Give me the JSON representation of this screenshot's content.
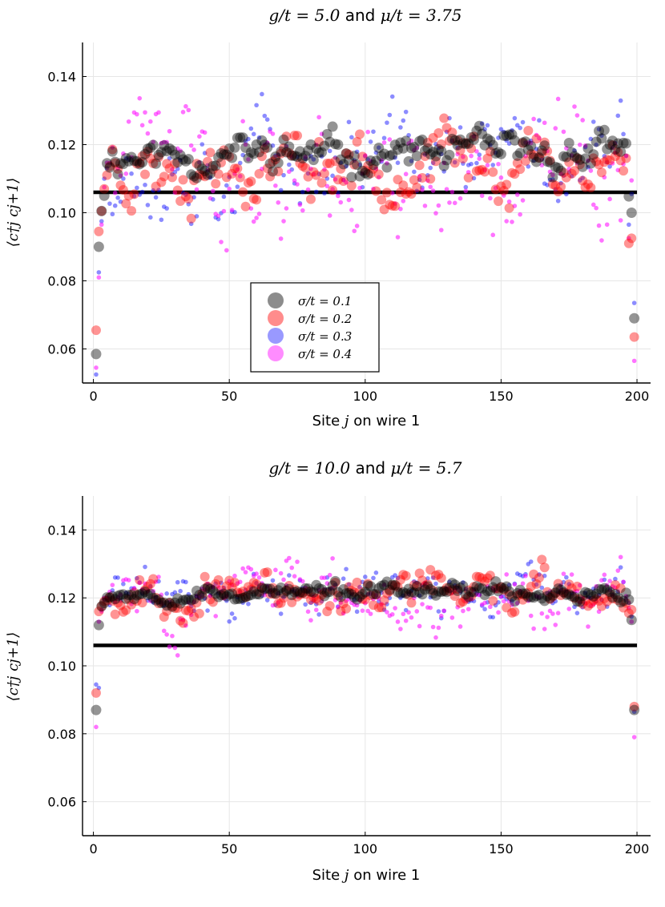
{
  "figure": {
    "layout": "two vertically stacked scatter plots sharing axes design"
  },
  "colors": {
    "s1": "#000000",
    "s2": "#ff0000",
    "s3": "#0000ff",
    "s4": "#ff00ff",
    "reference": "#000000",
    "grid": "#e6e6e6"
  },
  "chart_data": [
    {
      "type": "scatter",
      "title": {
        "g_part": "g/t = 5.0",
        "mid": "and",
        "mu_part": "μ/t = 3.75"
      },
      "xlabel": {
        "pre": "Site",
        "var": "j",
        "post": "on wire 1"
      },
      "ylabel": "⟨c†j cj+1⟩",
      "xlim": [
        -4,
        205
      ],
      "ylim": [
        0.05,
        0.15
      ],
      "xticks": [
        "0",
        "50",
        "100",
        "150",
        "200"
      ],
      "yticks": [
        "0.06",
        "0.08",
        "0.10",
        "0.12",
        "0.14"
      ],
      "reference_line": {
        "value": 0.106,
        "from": 0,
        "to": 200
      },
      "legend": {
        "position": "bottom-center",
        "entries": [
          "σ/t = 0.1",
          "σ/t = 0.2",
          "σ/t = 0.3",
          "σ/t = 0.4"
        ]
      },
      "series": [
        {
          "name": "σ/t = 0.1",
          "sigma": 0.1,
          "x_start": 1,
          "x_end": 199,
          "bulk_mean": 0.117,
          "spread": 0.004,
          "edge_left": [
            0.0585,
            0.09,
            0.1005,
            0.105
          ],
          "edge_right": [
            0.1048,
            0.1,
            0.069
          ],
          "seed": 11
        },
        {
          "name": "σ/t = 0.2",
          "sigma": 0.2,
          "x_start": 1,
          "x_end": 199,
          "bulk_mean": 0.115,
          "spread": 0.0075,
          "edge_left": [
            0.0655,
            0.0945,
            0.1005,
            0.107
          ],
          "edge_right": [
            0.091,
            0.0925,
            0.0635
          ],
          "seed": 23
        },
        {
          "name": "σ/t = 0.3",
          "sigma": 0.3,
          "x_start": 1,
          "x_end": 199,
          "bulk_mean": 0.116,
          "spread": 0.0105,
          "edge_left": [
            0.0525,
            0.0825,
            0.0975,
            0.11
          ],
          "edge_right": [
            0.0965,
            0.1055,
            0.0735
          ],
          "seed": 37
        },
        {
          "name": "σ/t = 0.4",
          "sigma": 0.4,
          "x_start": 1,
          "x_end": 199,
          "bulk_mean": 0.114,
          "spread": 0.0135,
          "edge_left": [
            0.0545,
            0.081,
            0.0965,
            0.1075
          ],
          "edge_right": [
            0.0925,
            0.1095,
            0.0565
          ],
          "seed": 41
        }
      ]
    },
    {
      "type": "scatter",
      "title": {
        "g_part": "g/t = 10.0",
        "mid": "and",
        "mu_part": "μ/t = 5.7"
      },
      "xlabel": {
        "pre": "Site",
        "var": "j",
        "post": "on wire 1"
      },
      "ylabel": "⟨c†j cj+1⟩",
      "xlim": [
        -4,
        205
      ],
      "ylim": [
        0.05,
        0.15
      ],
      "xticks": [
        "0",
        "50",
        "100",
        "150",
        "200"
      ],
      "yticks": [
        "0.06",
        "0.08",
        "0.10",
        "0.12",
        "0.14"
      ],
      "reference_line": {
        "value": 0.106,
        "from": 0,
        "to": 200
      },
      "series": [
        {
          "name": "σ/t = 0.1",
          "sigma": 0.1,
          "x_start": 1,
          "x_end": 199,
          "bulk_mean": 0.1215,
          "spread": 0.0018,
          "edge_left": [
            0.087,
            0.112,
            0.1175,
            0.1185
          ],
          "edge_right": [
            0.1215,
            0.1195,
            0.1135,
            0.087
          ],
          "seed": 53
        },
        {
          "name": "σ/t = 0.2",
          "sigma": 0.2,
          "x_start": 1,
          "x_end": 199,
          "bulk_mean": 0.1215,
          "spread": 0.0045,
          "edge_left": [
            0.092,
            0.116,
            0.1175,
            0.119
          ],
          "edge_right": [
            0.1185,
            0.1155,
            0.1165,
            0.088
          ],
          "seed": 67
        },
        {
          "name": "σ/t = 0.3",
          "sigma": 0.3,
          "x_start": 1,
          "x_end": 199,
          "bulk_mean": 0.121,
          "spread": 0.0055,
          "edge_left": [
            0.0945,
            0.0935,
            0.1165,
            0.1195
          ],
          "edge_right": [
            0.1195,
            0.1185,
            0.1145,
            0.0865
          ],
          "seed": 71
        },
        {
          "name": "σ/t = 0.4",
          "sigma": 0.4,
          "x_start": 1,
          "x_end": 199,
          "bulk_mean": 0.1205,
          "spread": 0.0072,
          "edge_left": [
            0.082,
            0.113,
            0.116,
            0.12
          ],
          "edge_right": [
            0.1205,
            0.117,
            0.113,
            0.079
          ],
          "seed": 83
        }
      ]
    }
  ]
}
